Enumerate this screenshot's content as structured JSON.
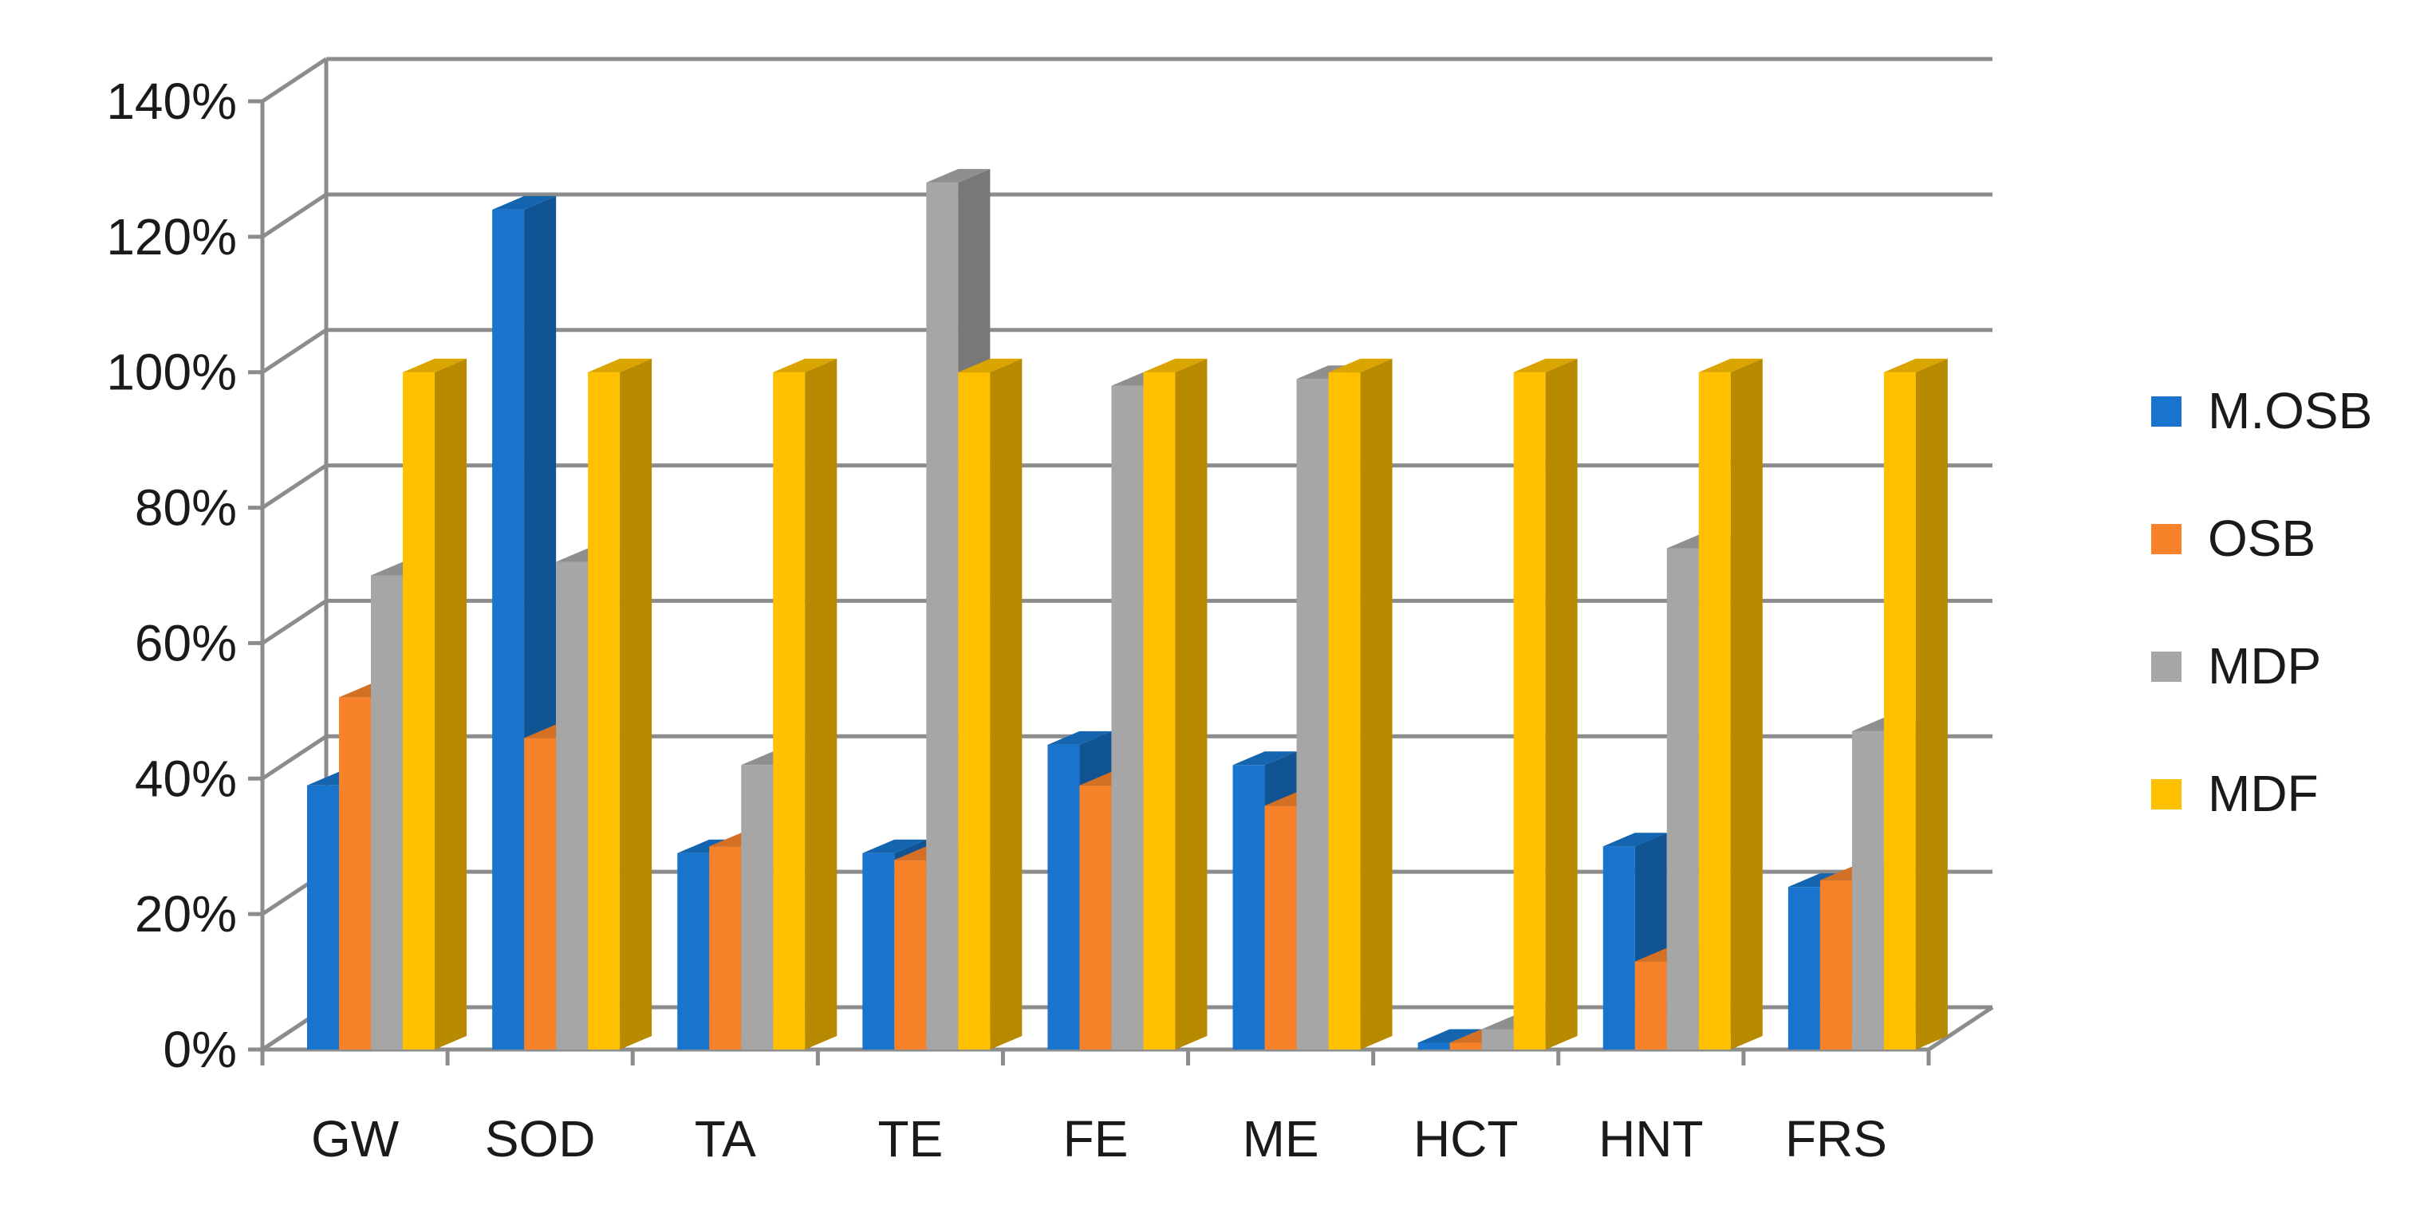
{
  "chart_data": {
    "type": "bar",
    "title": "",
    "xlabel": "",
    "ylabel": "",
    "categories": [
      "GW",
      "SOD",
      "TA",
      "TE",
      "FE",
      "ME",
      "HCT",
      "HNT",
      "FRS"
    ],
    "series": [
      {
        "name": "M.OSB",
        "color": "#1874CD",
        "values": [
          39,
          124,
          29,
          29,
          45,
          42,
          1,
          30,
          24
        ]
      },
      {
        "name": "OSB",
        "color": "#F7822A",
        "values": [
          52,
          46,
          30,
          28,
          39,
          36,
          1,
          13,
          25
        ]
      },
      {
        "name": "MDP",
        "color": "#A6A6A6",
        "values": [
          70,
          72,
          42,
          128,
          98,
          99,
          3,
          74,
          47
        ]
      },
      {
        "name": "MDF",
        "color": "#FFC000",
        "values": [
          100,
          100,
          100,
          100,
          100,
          100,
          100,
          100,
          100
        ]
      }
    ],
    "ylim": [
      0,
      140
    ],
    "yticks": [
      "0%",
      "20%",
      "40%",
      "60%",
      "80%",
      "100%",
      "120%",
      "140%"
    ],
    "yunit": "%",
    "grid": true,
    "projection": "3d",
    "legend_position": "right"
  }
}
